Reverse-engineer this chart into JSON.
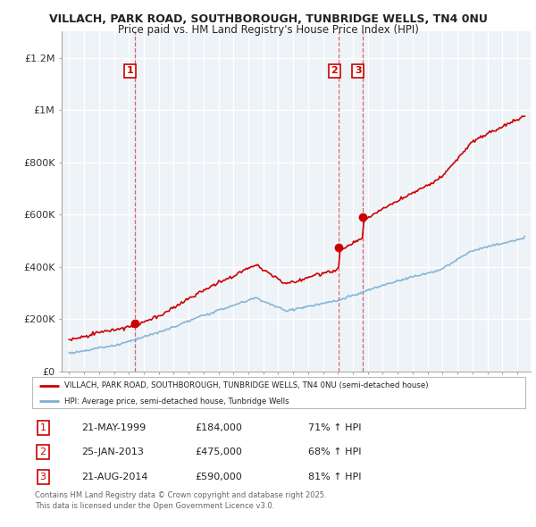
{
  "title_line1": "VILLACH, PARK ROAD, SOUTHBOROUGH, TUNBRIDGE WELLS, TN4 0NU",
  "title_line2": "Price paid vs. HM Land Registry's House Price Index (HPI)",
  "ylim": [
    0,
    1300000
  ],
  "yticks": [
    0,
    200000,
    400000,
    600000,
    800000,
    1000000,
    1200000
  ],
  "ytick_labels": [
    "£0",
    "£200K",
    "£400K",
    "£600K",
    "£800K",
    "£1M",
    "£1.2M"
  ],
  "sale_color": "#cc0000",
  "hpi_color": "#7aafd4",
  "sale_dates_num": [
    1999.38,
    2013.07,
    2014.64
  ],
  "sale_prices": [
    184000,
    475000,
    590000
  ],
  "sale_labels": [
    "1",
    "2",
    "3"
  ],
  "vline_dates": [
    1999.38,
    2013.07,
    2014.64
  ],
  "legend_sale": "VILLACH, PARK ROAD, SOUTHBOROUGH, TUNBRIDGE WELLS, TN4 0NU (semi-detached house)",
  "legend_hpi": "HPI: Average price, semi-detached house, Tunbridge Wells",
  "table_rows": [
    [
      "1",
      "21-MAY-1999",
      "£184,000",
      "71% ↑ HPI"
    ],
    [
      "2",
      "25-JAN-2013",
      "£475,000",
      "68% ↑ HPI"
    ],
    [
      "3",
      "21-AUG-2014",
      "£590,000",
      "81% ↑ HPI"
    ]
  ],
  "footer": "Contains HM Land Registry data © Crown copyright and database right 2025.\nThis data is licensed under the Open Government Licence v3.0.",
  "background_color": "#ffffff",
  "plot_bg_color": "#eef3f8"
}
